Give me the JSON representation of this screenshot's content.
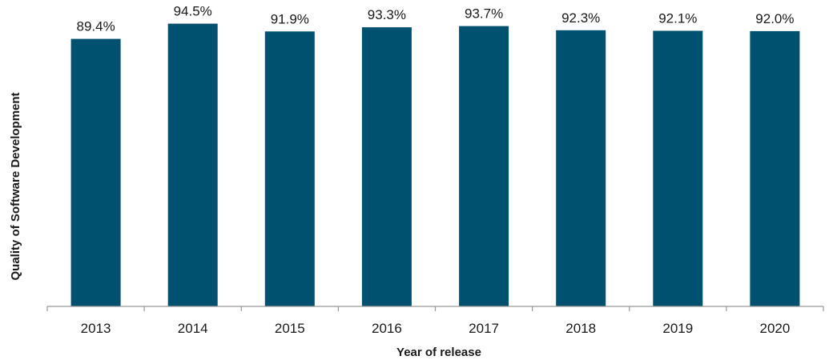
{
  "chart_data": {
    "type": "bar",
    "categories": [
      "2013",
      "2014",
      "2015",
      "2016",
      "2017",
      "2018",
      "2019",
      "2020"
    ],
    "values": [
      89.4,
      94.5,
      91.9,
      93.3,
      93.7,
      92.3,
      92.1,
      92.0
    ],
    "value_labels": [
      "89.4%",
      "94.5%",
      "91.9%",
      "93.3%",
      "93.7%",
      "92.3%",
      "92.1%",
      "92.0%"
    ],
    "value_unit": "%",
    "xlabel": "Year of release",
    "ylabel": "Quality of Software Development",
    "ylim": [
      0,
      100
    ],
    "grid": false,
    "legend": "none",
    "bar_color": "#00506f",
    "axis_color": "#999999",
    "text_color": "#1a1a1a"
  }
}
